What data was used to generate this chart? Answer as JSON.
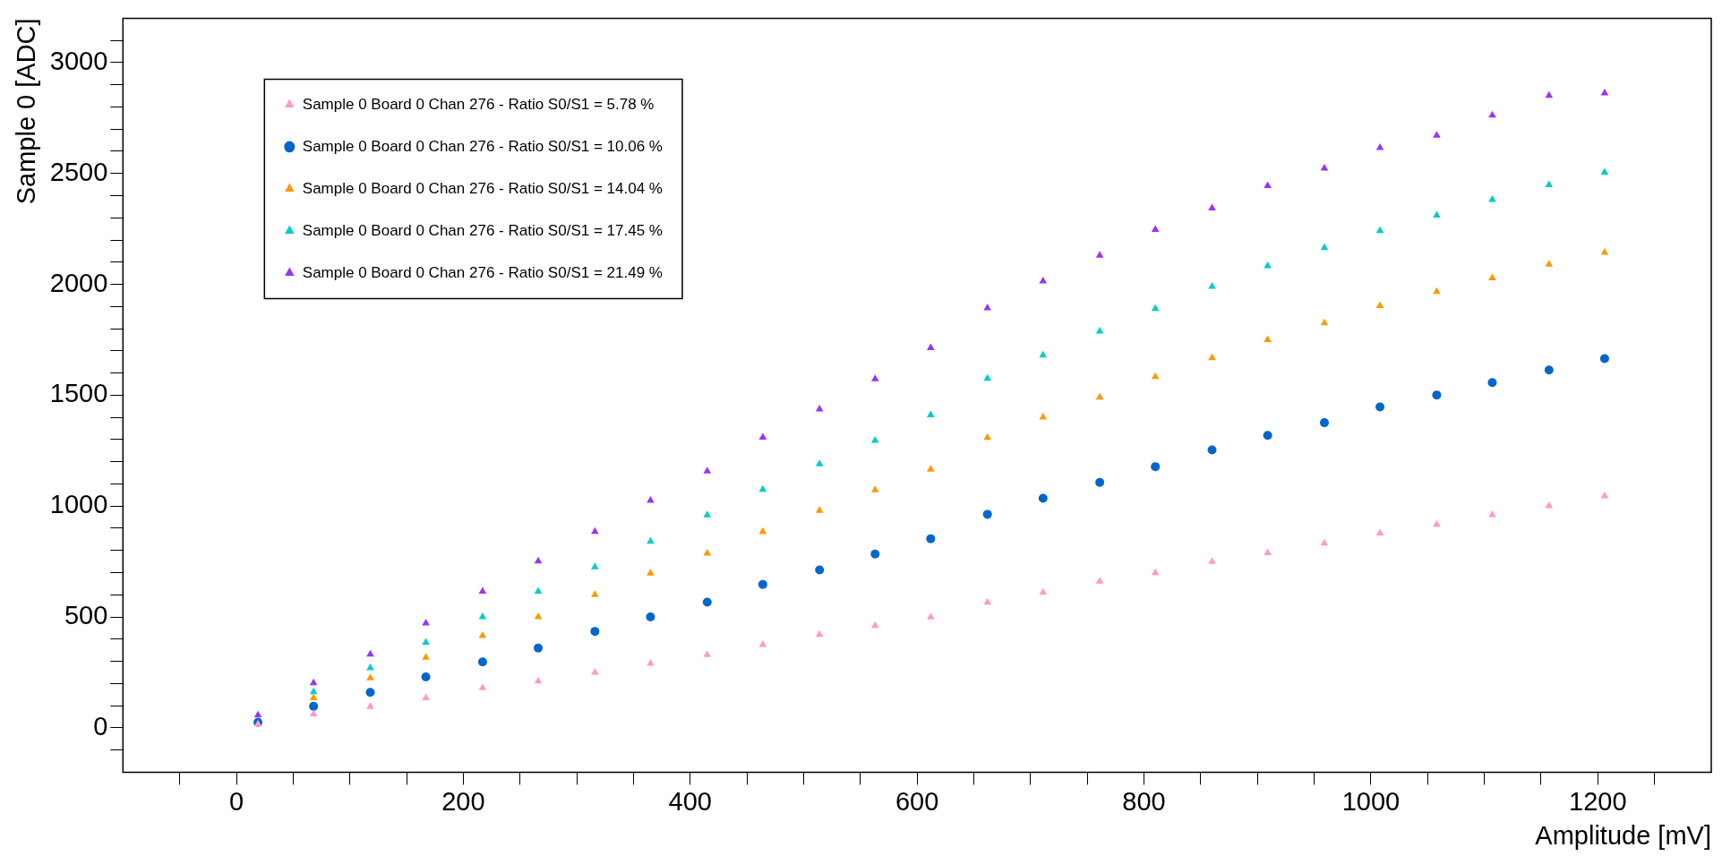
{
  "chart_data": {
    "type": "scatter",
    "xlabel": "Amplitude [mV]",
    "ylabel": "Sample 0 [ADC]",
    "x": [
      19,
      68,
      118,
      167,
      217,
      266,
      316,
      365,
      415,
      464,
      514,
      563,
      612,
      662,
      711,
      761,
      810,
      860,
      909,
      959,
      1008,
      1058,
      1107,
      1157,
      1206
    ],
    "xlim": [
      -100,
      1300
    ],
    "xticks": [
      {
        "value": -50,
        "label": null
      },
      0,
      {
        "value": 50,
        "label": null
      },
      {
        "value": 100,
        "label": null
      },
      {
        "value": 150,
        "label": null
      },
      200,
      {
        "value": 250,
        "label": null
      },
      {
        "value": 300,
        "label": null
      },
      {
        "value": 350,
        "label": null
      },
      400,
      {
        "value": 450,
        "label": null
      },
      {
        "value": 500,
        "label": null
      },
      {
        "value": 550,
        "label": null
      },
      600,
      {
        "value": 650,
        "label": null
      },
      {
        "value": 700,
        "label": null
      },
      {
        "value": 750,
        "label": null
      },
      800,
      {
        "value": 850,
        "label": null
      },
      {
        "value": 900,
        "label": null
      },
      {
        "value": 950,
        "label": null
      },
      1000,
      {
        "value": 1050,
        "label": null
      },
      {
        "value": 1100,
        "label": null
      },
      {
        "value": 1150,
        "label": null
      },
      1200,
      {
        "value": 1250,
        "label": null
      }
    ],
    "ylim": [
      -200,
      3200
    ],
    "yticks": [
      {
        "value": -100,
        "label": null
      },
      0,
      {
        "value": 100,
        "label": null
      },
      {
        "value": 200,
        "label": null
      },
      {
        "value": 300,
        "label": null
      },
      {
        "value": 400,
        "label": null
      },
      500,
      {
        "value": 600,
        "label": null
      },
      {
        "value": 700,
        "label": null
      },
      {
        "value": 800,
        "label": null
      },
      {
        "value": 900,
        "label": null
      },
      1000,
      {
        "value": 1100,
        "label": null
      },
      {
        "value": 1200,
        "label": null
      },
      {
        "value": 1300,
        "label": null
      },
      {
        "value": 1400,
        "label": null
      },
      1500,
      {
        "value": 1600,
        "label": null
      },
      {
        "value": 1700,
        "label": null
      },
      {
        "value": 1800,
        "label": null
      },
      {
        "value": 1900,
        "label": null
      },
      2000,
      {
        "value": 2100,
        "label": null
      },
      {
        "value": 2200,
        "label": null
      },
      {
        "value": 2300,
        "label": null
      },
      {
        "value": 2400,
        "label": null
      },
      2500,
      {
        "value": 2600,
        "label": null
      },
      {
        "value": 2700,
        "label": null
      },
      {
        "value": 2800,
        "label": null
      },
      {
        "value": 2900,
        "label": null
      },
      3000,
      {
        "value": 3100,
        "label": null
      }
    ],
    "legend": "top left",
    "series": [
      {
        "name": "Sample 0 Board 0 Chan 276 - Ratio S0/S1 = 5.78 %",
        "color": "#ff99cc",
        "marker": "triangle",
        "values": [
          17,
          62,
          95,
          135,
          180,
          210,
          250,
          290,
          330,
          375,
          420,
          461,
          499,
          566,
          610,
          661,
          699,
          750,
          789,
          832,
          878,
          917,
          961,
          1001,
          1045
        ]
      },
      {
        "name": "Sample 0 Board 0 Chan 276 - Ratio S0/S1 = 10.06 %",
        "color": "#0066cc",
        "marker": "circle",
        "values": [
          25,
          97,
          160,
          230,
          297,
          360,
          435,
          500,
          567,
          647,
          712,
          784,
          853,
          963,
          1035,
          1107,
          1178,
          1253,
          1319,
          1376,
          1447,
          1501,
          1557,
          1614,
          1665
        ]
      },
      {
        "name": "Sample 0 Board 0 Chan 276 - Ratio S0/S1 = 14.04 %",
        "color": "#ff9900",
        "marker": "triangle",
        "values": [
          null,
          135,
          225,
          317,
          415,
          500,
          600,
          697,
          787,
          885,
          980,
          1073,
          1165,
          1309,
          1401,
          1491,
          1583,
          1668,
          1750,
          1826,
          1903,
          1967,
          2029,
          2090,
          2144
        ]
      },
      {
        "name": "Sample 0 Board 0 Chan 276 - Ratio S0/S1 = 17.45 %",
        "color": "#00cccc",
        "marker": "triangle",
        "values": [
          null,
          162,
          270,
          385,
          500,
          615,
          725,
          840,
          960,
          1075,
          1190,
          1296,
          1411,
          1575,
          1680,
          1788,
          1890,
          1990,
          2083,
          2165,
          2242,
          2311,
          2382,
          2449,
          2505
        ]
      },
      {
        "name": "Sample 0 Board 0 Chan 276 - Ratio S0/S1 = 21.49 %",
        "color": "#9933ff",
        "marker": "triangle",
        "values": [
          57,
          202,
          332,
          472,
          615,
          752,
          885,
          1025,
          1157,
          1310,
          1437,
          1573,
          1714,
          1893,
          2014,
          2131,
          2247,
          2344,
          2444,
          2523,
          2616,
          2672,
          2762,
          2851,
          2862
        ]
      }
    ]
  }
}
